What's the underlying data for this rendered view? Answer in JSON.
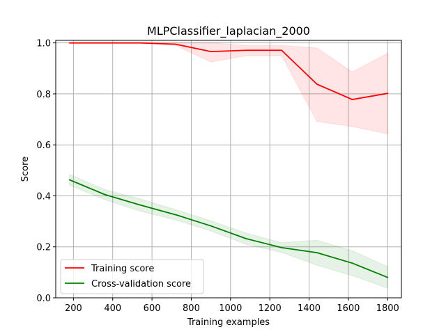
{
  "chart_data": {
    "type": "line",
    "title": "MLPClassifier_laplacian_2000",
    "xlabel": "Training examples",
    "ylabel": "Score",
    "xlim": [
      110,
      1870
    ],
    "ylim": [
      0.0,
      1.01
    ],
    "x_ticks": [
      200,
      400,
      600,
      800,
      1000,
      1200,
      1400,
      1600,
      1800
    ],
    "x_tick_labels": [
      "200",
      "400",
      "600",
      "800",
      "1000",
      "1200",
      "1400",
      "1600",
      "1800"
    ],
    "y_ticks": [
      0.0,
      0.2,
      0.4,
      0.6,
      0.8,
      1.0
    ],
    "y_tick_labels": [
      "0.0",
      "0.2",
      "0.4",
      "0.6",
      "0.8",
      "1.0"
    ],
    "grid": true,
    "legend_position": "lower-left",
    "x": [
      180,
      360,
      540,
      720,
      900,
      1080,
      1260,
      1440,
      1620,
      1800
    ],
    "series": [
      {
        "name": "Training score",
        "color": "#ff0000",
        "fill_color": "#ff0000",
        "values": [
          1.0,
          1.0,
          1.0,
          0.995,
          0.966,
          0.971,
          0.971,
          0.838,
          0.778,
          0.802
        ],
        "band_lower": [
          1.0,
          1.0,
          1.0,
          0.99,
          0.925,
          0.95,
          0.95,
          0.692,
          0.672,
          0.643
        ],
        "band_upper": [
          1.0,
          1.0,
          1.0,
          1.0,
          1.0,
          0.99,
          0.99,
          0.98,
          0.886,
          0.96
        ]
      },
      {
        "name": "Cross-validation score",
        "color": "#008000",
        "fill_color": "#008000",
        "values": [
          0.463,
          0.405,
          0.364,
          0.326,
          0.282,
          0.232,
          0.197,
          0.177,
          0.136,
          0.08
        ],
        "band_lower": [
          0.442,
          0.385,
          0.34,
          0.306,
          0.262,
          0.21,
          0.178,
          0.128,
          0.087,
          0.038
        ],
        "band_upper": [
          0.484,
          0.425,
          0.388,
          0.346,
          0.302,
          0.254,
          0.216,
          0.226,
          0.185,
          0.122
        ]
      }
    ]
  }
}
